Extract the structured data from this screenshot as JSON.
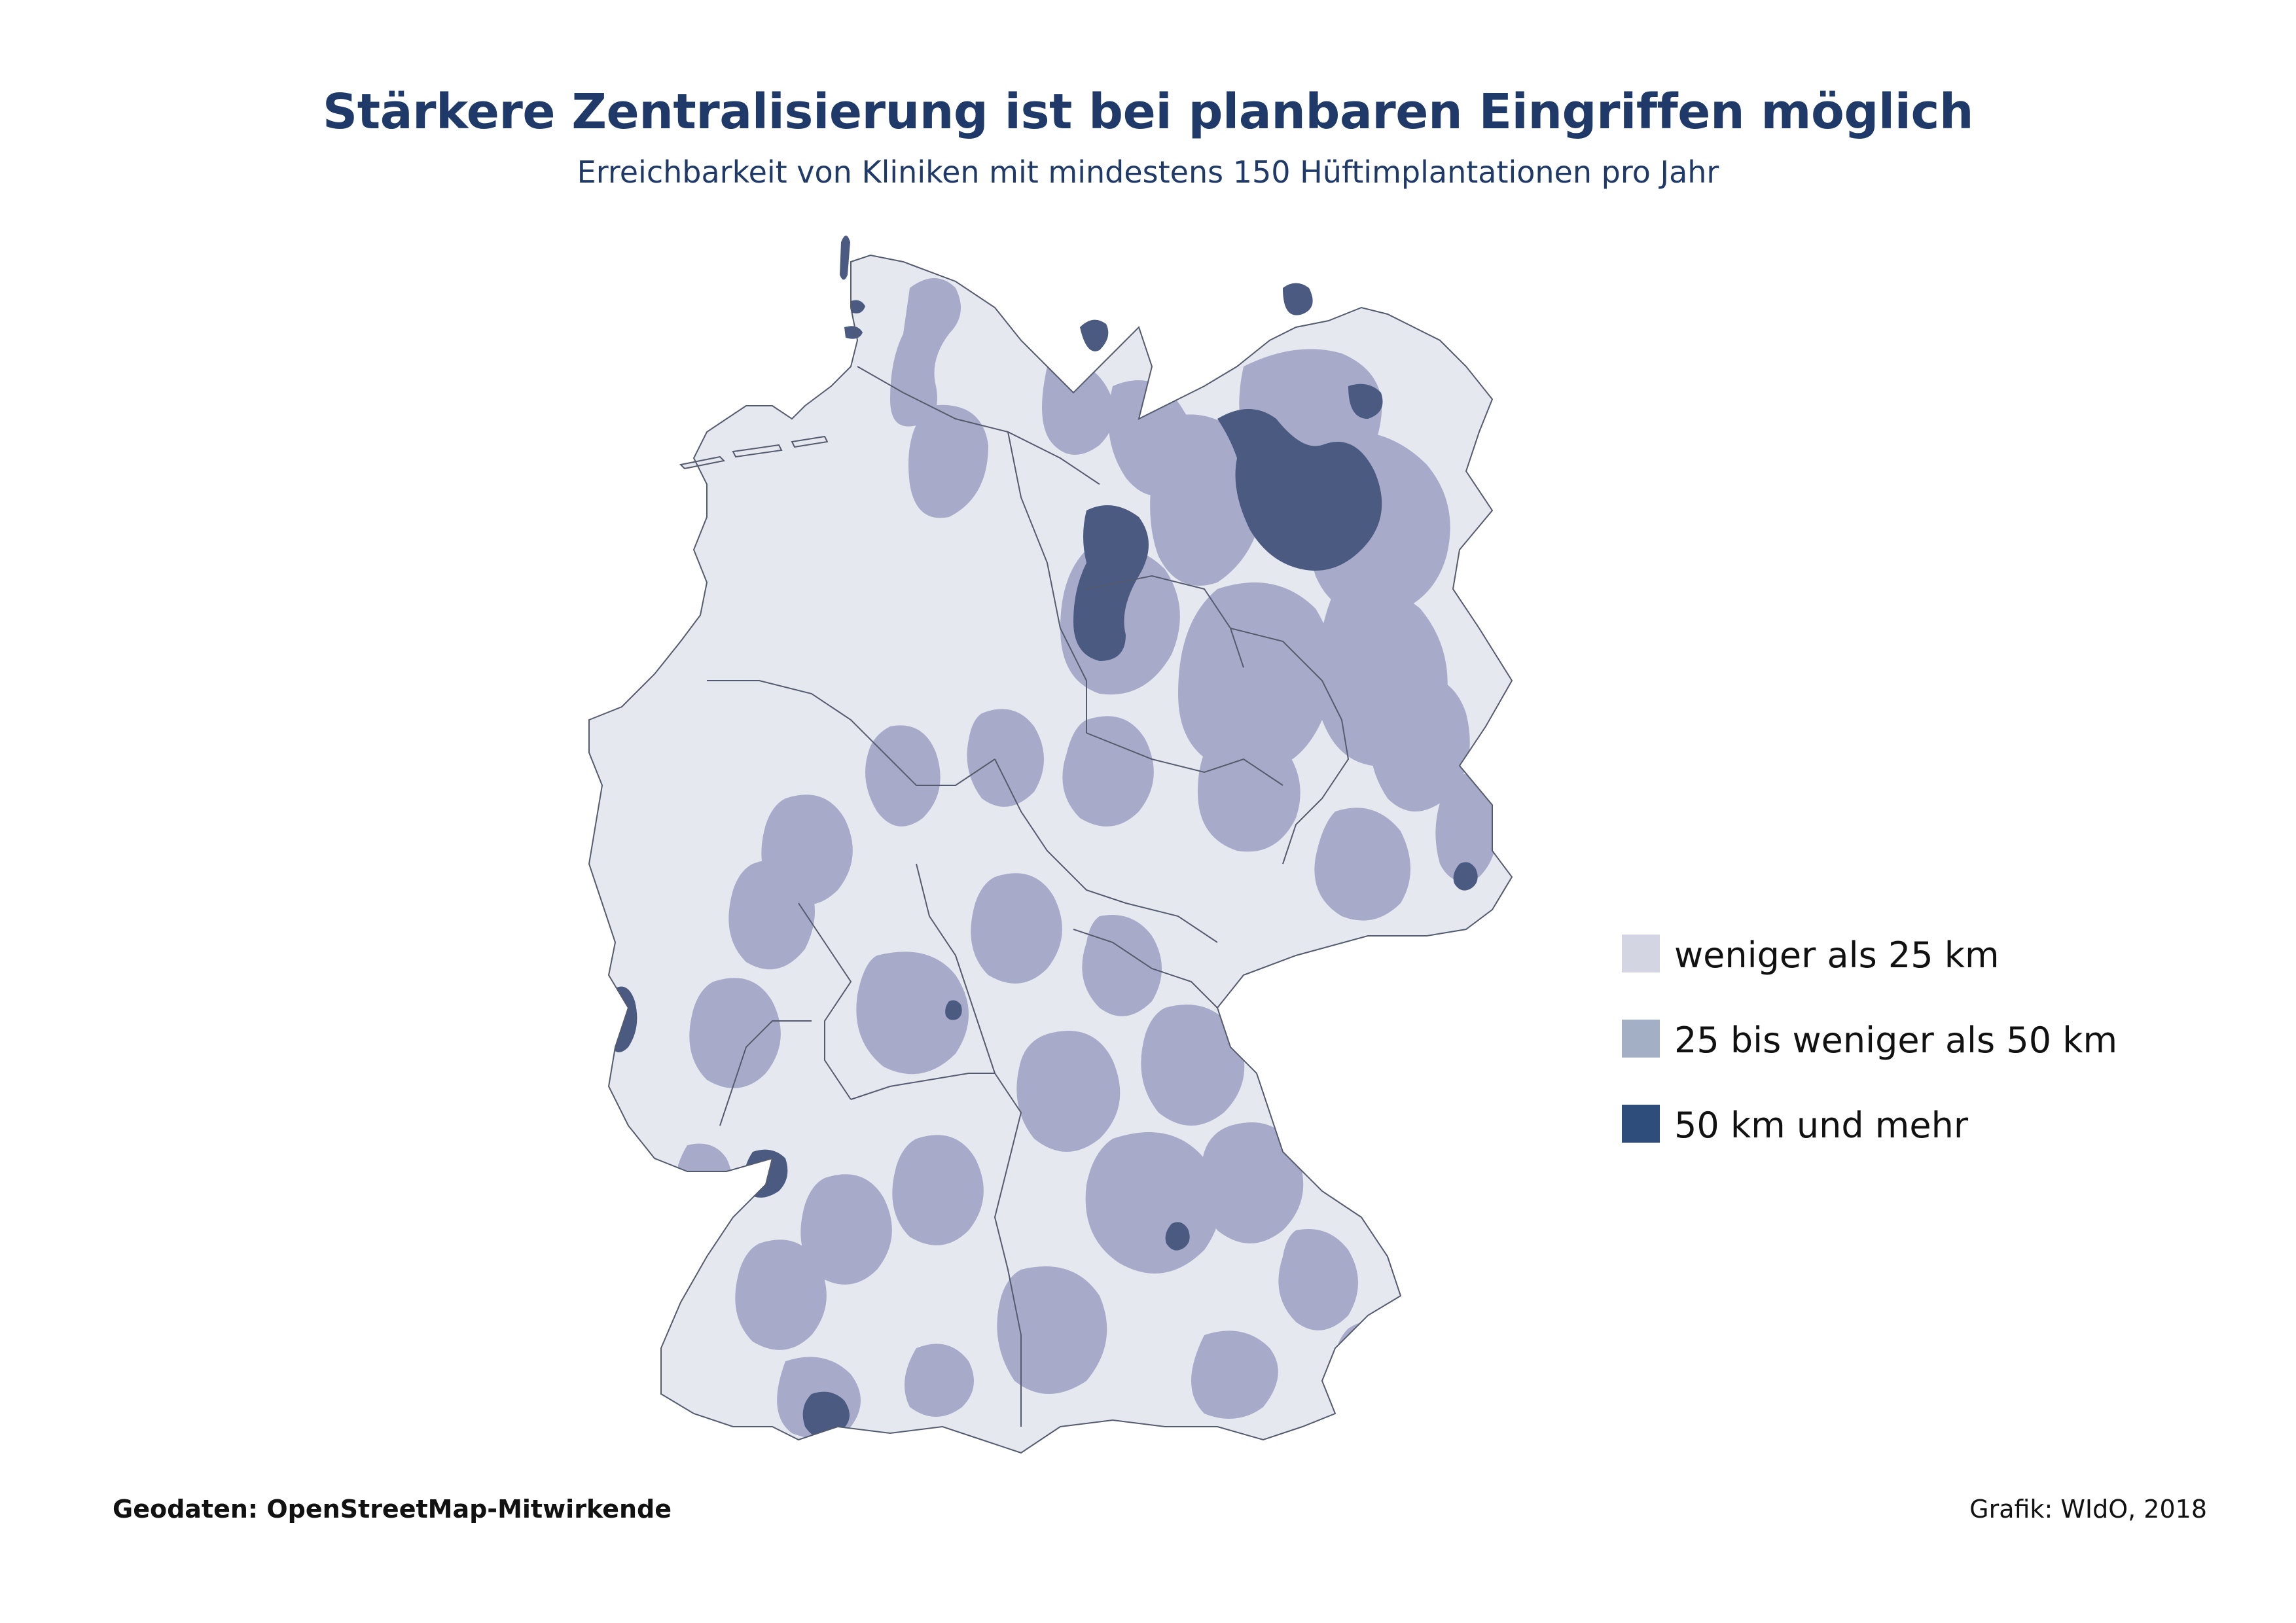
{
  "header": {
    "title": "Stärkere Zentralisierung ist bei planbaren Eingriffen möglich",
    "subtitle": "Erreichbarkeit von Kliniken mit mindestens 150 Hüftimplantationen pro Jahr"
  },
  "map": {
    "region": "Deutschland",
    "colors": {
      "lt25": "#e6e8f0",
      "25to50": "#a7abc9",
      "gte50": "#4a5a80",
      "border": "#555b6e"
    }
  },
  "legend": {
    "items": [
      {
        "label": "weniger als 25 km",
        "color": "#d3d6e2"
      },
      {
        "label": "25 bis weniger als 50 km",
        "color": "#a3afc4"
      },
      {
        "label": "50 km und mehr",
        "color": "#2f4d7a"
      }
    ]
  },
  "footer": {
    "source": "Geodaten: OpenStreetMap-Mitwirkende",
    "credit": "Grafik: WIdO, 2018"
  }
}
